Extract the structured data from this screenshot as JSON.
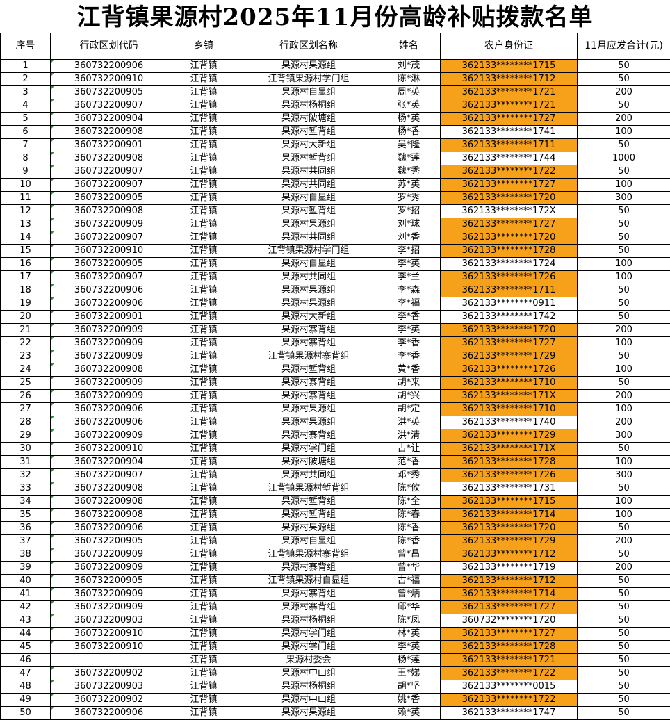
{
  "title": "江背镇果源村2025年11月份高龄补贴拨款名单",
  "highlight_color": "#f7a11a",
  "headers": [
    "序号",
    "行政区划代码",
    "乡镇",
    "行政区划名称",
    "姓名",
    "农户身份证",
    "11月应发合计(元)"
  ],
  "rows": [
    [
      "1",
      "360732200906",
      "江背镇",
      "果源村果源组",
      "刘*茂",
      "362133********1715",
      "50",
      true
    ],
    [
      "2",
      "360732200910",
      "江背镇",
      "江背镇果源村学门组",
      "陈*淋",
      "362133********1712",
      "50",
      true
    ],
    [
      "3",
      "360732200905",
      "江背镇",
      "果源村自显组",
      "周*英",
      "362133********1721",
      "200",
      true
    ],
    [
      "4",
      "360732200907",
      "江背镇",
      "果源村杨桐组",
      "张*英",
      "362133********1721",
      "50",
      true
    ],
    [
      "5",
      "360732200904",
      "江背镇",
      "果源村陂塘组",
      "杨*英",
      "362133********1727",
      "200",
      true
    ],
    [
      "6",
      "360732200908",
      "江背镇",
      "果源村堑背组",
      "杨*香",
      "362133********1741",
      "100",
      false
    ],
    [
      "7",
      "360732200901",
      "江背镇",
      "果源村大新组",
      "吴*隆",
      "362133********1711",
      "50",
      true
    ],
    [
      "8",
      "360732200908",
      "江背镇",
      "果源村堑背组",
      "魏*莲",
      "362133********1744",
      "1000",
      false
    ],
    [
      "9",
      "360732200907",
      "江背镇",
      "果源村共同组",
      "魏*秀",
      "362133********1722",
      "50",
      true
    ],
    [
      "10",
      "360732200907",
      "江背镇",
      "果源村共同组",
      "苏*英",
      "362133********1727",
      "100",
      true
    ],
    [
      "11",
      "360732200905",
      "江背镇",
      "果源村自显组",
      "罗*秀",
      "362133********1720",
      "300",
      true
    ],
    [
      "12",
      "360732200908",
      "江背镇",
      "果源村堑背组",
      "罗*招",
      "362133********172X",
      "50",
      false
    ],
    [
      "13",
      "360732200909",
      "江背镇",
      "果源村果源组",
      "刘*球",
      "362133********1727",
      "50",
      true
    ],
    [
      "14",
      "360732200907",
      "江背镇",
      "果源村共同组",
      "刘*香",
      "362133********1720",
      "50",
      true
    ],
    [
      "15",
      "360732200910",
      "江背镇",
      "江背镇果源村学门组",
      "李*招",
      "362133********1728",
      "50",
      true
    ],
    [
      "16",
      "360732200905",
      "江背镇",
      "果源村自显组",
      "李*英",
      "362133********1724",
      "100",
      false
    ],
    [
      "17",
      "360732200907",
      "江背镇",
      "果源村共同组",
      "李*兰",
      "362133********1726",
      "100",
      true
    ],
    [
      "18",
      "360732200906",
      "江背镇",
      "果源村果源组",
      "李*森",
      "362133********1711",
      "50",
      true
    ],
    [
      "19",
      "360732200906",
      "江背镇",
      "果源村果源组",
      "李*福",
      "362133********0911",
      "50",
      false
    ],
    [
      "20",
      "360732200901",
      "江背镇",
      "果源村大新组",
      "李*香",
      "362133********1742",
      "50",
      false
    ],
    [
      "21",
      "360732200909",
      "江背镇",
      "果源村寨背组",
      "李*英",
      "362133********1720",
      "200",
      true
    ],
    [
      "22",
      "360732200909",
      "江背镇",
      "果源村寨背组",
      "李*香",
      "362133********1727",
      "100",
      true
    ],
    [
      "23",
      "360732200909",
      "江背镇",
      "江背镇果源村寨背组",
      "李*香",
      "362133********1729",
      "50",
      true
    ],
    [
      "24",
      "360732200908",
      "江背镇",
      "果源村堑背组",
      "黄*香",
      "362133********1726",
      "100",
      true
    ],
    [
      "25",
      "360732200909",
      "江背镇",
      "果源村寨背组",
      "胡*来",
      "362133********1710",
      "50",
      true
    ],
    [
      "26",
      "360732200909",
      "江背镇",
      "果源村寨背组",
      "胡*兴",
      "362133********171X",
      "200",
      true
    ],
    [
      "27",
      "360732200906",
      "江背镇",
      "果源村果源组",
      "胡*定",
      "362133********1710",
      "100",
      true
    ],
    [
      "28",
      "360732200906",
      "江背镇",
      "果源村果源组",
      "洪*英",
      "362133********1740",
      "200",
      false
    ],
    [
      "29",
      "360732200909",
      "江背镇",
      "果源村寨背组",
      "洪*清",
      "362133********1729",
      "300",
      true
    ],
    [
      "30",
      "360732200910",
      "江背镇",
      "果源村学门组",
      "古*让",
      "362133********171X",
      "50",
      true
    ],
    [
      "31",
      "360732200904",
      "江背镇",
      "果源村陂塘组",
      "范*香",
      "362133********1728",
      "100",
      true
    ],
    [
      "32",
      "360732200907",
      "江背镇",
      "果源村共同组",
      "邓*秀",
      "362133********1726",
      "300",
      true
    ],
    [
      "33",
      "360732200908",
      "江背镇",
      "江背镇果源村堑背组",
      "陈*攸",
      "362133********1731",
      "50",
      false
    ],
    [
      "34",
      "360732200908",
      "江背镇",
      "果源村堑背组",
      "陈*全",
      "362133********1715",
      "100",
      true
    ],
    [
      "35",
      "360732200908",
      "江背镇",
      "果源村堑背组",
      "陈*春",
      "362133********1714",
      "100",
      true
    ],
    [
      "36",
      "360732200906",
      "江背镇",
      "果源村果源组",
      "陈*香",
      "362133********1720",
      "50",
      true
    ],
    [
      "37",
      "360732200905",
      "江背镇",
      "果源村自显组",
      "陈*香",
      "362133********1729",
      "200",
      true
    ],
    [
      "38",
      "360732200909",
      "江背镇",
      "江背镇果源村寨背组",
      "曾*昌",
      "362133********1712",
      "50",
      true
    ],
    [
      "39",
      "360732200909",
      "江背镇",
      "果源村寨背组",
      "曾*华",
      "362133********1719",
      "200",
      false
    ],
    [
      "40",
      "360732200905",
      "江背镇",
      "江背镇果源村自显组",
      "古*福",
      "362133********1712",
      "50",
      true
    ],
    [
      "41",
      "360732200909",
      "江背镇",
      "果源村寨背组",
      "曾*炳",
      "362133********1714",
      "50",
      true
    ],
    [
      "42",
      "360732200909",
      "江背镇",
      "果源村寨背组",
      "邱*华",
      "362133********1727",
      "50",
      true
    ],
    [
      "43",
      "360732200903",
      "江背镇",
      "果源村杨桐组",
      "陈*凤",
      "360732********1720",
      "50",
      false
    ],
    [
      "44",
      "360732200910",
      "江背镇",
      "果源村学门组",
      "林*英",
      "362133********1727",
      "50",
      true
    ],
    [
      "45",
      "360732200910",
      "江背镇",
      "果源村学门组",
      "李*英",
      "362133********1728",
      "50",
      true
    ],
    [
      "46",
      "",
      "江背镇",
      "果源村委会",
      "杨*莲",
      "362133********1721",
      "50",
      true
    ],
    [
      "47",
      "360732200902",
      "江背镇",
      "果源村中山组",
      "王*娣",
      "362133********1722",
      "50",
      true
    ],
    [
      "48",
      "360732200903",
      "江背镇",
      "果源村杨桐组",
      "胡*坚",
      "362133********0015",
      "50",
      false
    ],
    [
      "49",
      "360732200902",
      "江背镇",
      "果源村中山组",
      "姚*香",
      "362133********1722",
      "50",
      true
    ],
    [
      "50",
      "360732200906",
      "江背镇",
      "果源村果源组",
      "赖*英",
      "362133********1747",
      "50",
      false
    ]
  ]
}
